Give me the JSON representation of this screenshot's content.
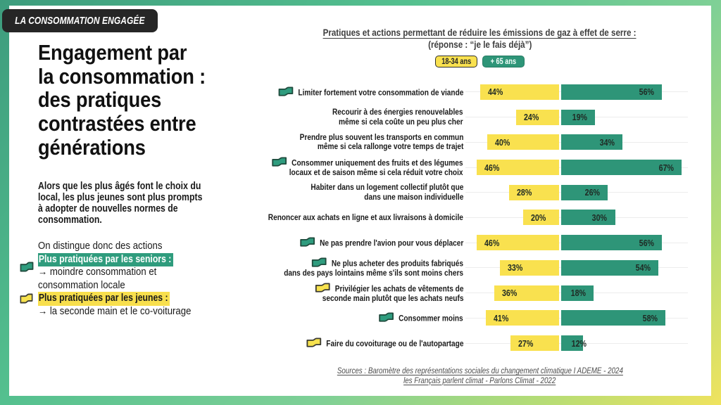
{
  "tag": "LA CONSOMMATION ENGAGÉE",
  "title": "Engagement par\nla consommation :\ndes pratiques\ncontrastées entre\ngénérations",
  "intro": "Alors que les plus âgés font le choix du\nlocal, les plus jeunes sont plus prompts\nà adopter de nouvelles normes de\nconsommation.",
  "key": {
    "line1": "On distingue donc des actions",
    "seniors_label": "Plus pratiquées par les seniors :",
    "seniors_detail1": "→ moindre consommation et",
    "seniors_detail2": "consommation locale",
    "jeunes_label": "Plus pratiquées par les jeunes :",
    "jeunes_detail": "→ la seconde main et le co-voiturage"
  },
  "colors": {
    "green": "#2e9578",
    "yellow": "#f9e14f",
    "highlight_green": "#2f9c7d",
    "highlight_yellow": "#f8df4d",
    "flag_green": "#2f9c7e",
    "flag_yellow": "#f7e24e",
    "flag_green_stroke": "#1f4a3c",
    "flag_yellow_stroke": "#3a3a33",
    "badge_bg": "#262626"
  },
  "chart_data": {
    "type": "bar",
    "title": "Pratiques et actions permettant de réduire les émissions de gaz à effet de serre :",
    "subtitle": "(réponse : “je le fais déjà”)",
    "unit": "%",
    "legend": [
      {
        "label": "18-34 ans",
        "color": "#f9e14f"
      },
      {
        "label": "+ 65 ans",
        "color": "#2e9578"
      }
    ],
    "categories": [
      {
        "label": "Limiter fortement votre consommation de viande",
        "flag": "green"
      },
      {
        "label": "Recourir à des énergies renouvelables\nmême si cela coûte un peu plus cher",
        "flag": null
      },
      {
        "label": "Prendre plus souvent les transports en commun\nmême si cela rallonge votre temps de trajet",
        "flag": null
      },
      {
        "label": "Consommer uniquement des fruits et des légumes\nlocaux et de saison même si cela réduit votre choix",
        "flag": "green"
      },
      {
        "label": "Habiter dans un logement collectif plutôt que\ndans une maison individuelle",
        "flag": null
      },
      {
        "label": "Renoncer aux achats en ligne et aux livraisons à domicile",
        "flag": null
      },
      {
        "label": "Ne pas prendre l'avion pour vous déplacer",
        "flag": "green"
      },
      {
        "label": "Ne plus acheter des produits fabriqués\ndans des pays lointains même s'ils sont moins chers",
        "flag": "green"
      },
      {
        "label": "Privilégier les achats de vêtements de\nseconde main plutôt que les achats neufs",
        "flag": "yellow"
      },
      {
        "label": "Consommer moins",
        "flag": "green"
      },
      {
        "label": "Faire du covoiturage ou de l'autopartage",
        "flag": "yellow"
      }
    ],
    "series": [
      {
        "name": "18-34 ans",
        "values": [
          44,
          24,
          40,
          46,
          28,
          20,
          46,
          33,
          36,
          41,
          27
        ]
      },
      {
        "name": "+ 65 ans",
        "values": [
          56,
          19,
          34,
          67,
          26,
          30,
          56,
          54,
          18,
          58,
          12
        ]
      }
    ],
    "sources": "Sources : Baromètre des représentations sociales du changement climatique I ADEME - 2024\nles Français parlent climat - Parlons Climat - 2022"
  }
}
